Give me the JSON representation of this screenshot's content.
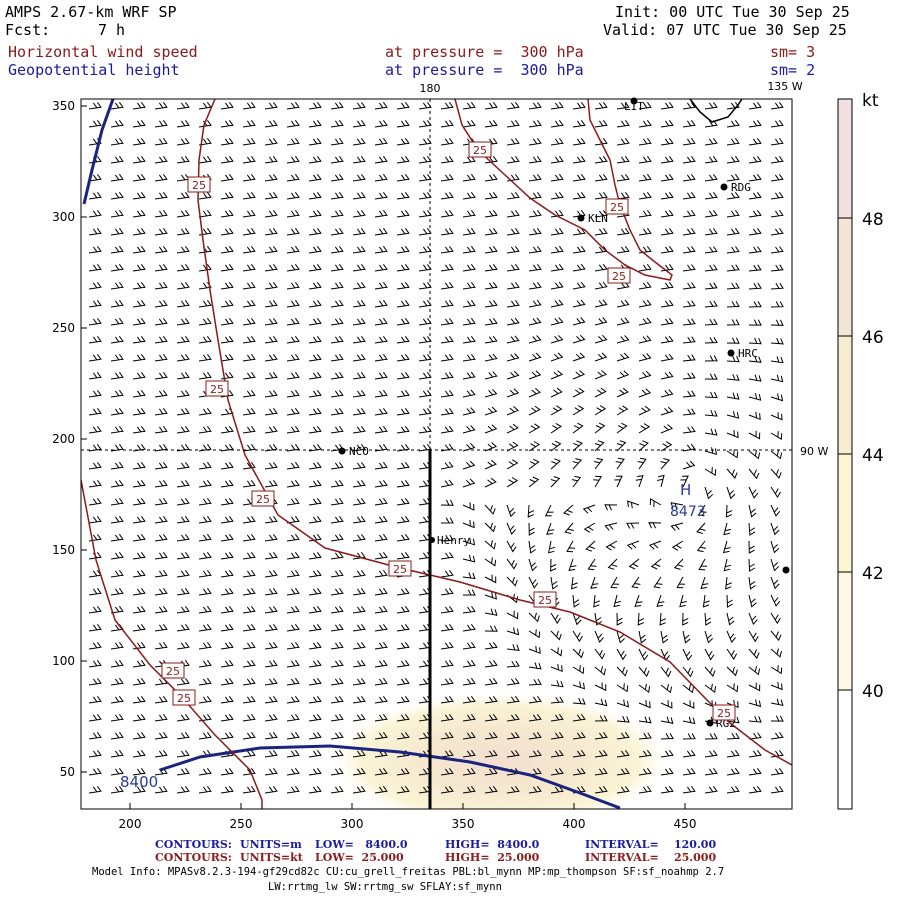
{
  "header": {
    "model": "AMPS 2.67-km WRF SP",
    "fcst_label": "Fcst:",
    "fcst_value": "7 h",
    "init": "Init: 00 UTC Tue 30 Sep 25",
    "valid": "Valid: 07 UTC Tue 30 Sep 25",
    "field1": "Horizontal wind speed",
    "field2": "Geopotential height",
    "level1": "at pressure =  300 hPa",
    "level2": "at pressure =  300 hPa",
    "sm1": "sm= 3",
    "sm2": "sm= 2"
  },
  "map": {
    "meridian_180": "180",
    "meridian_135w": "135 W",
    "meridian_90w": "90 W",
    "x_ticks": [
      "200",
      "250",
      "300",
      "350",
      "400",
      "450"
    ],
    "y_ticks": [
      "350",
      "300",
      "250",
      "200",
      "150",
      "100",
      "50"
    ],
    "stations": [
      {
        "name": "LIT"
      },
      {
        "name": "RDG"
      },
      {
        "name": "KLN"
      },
      {
        "name": "HRC"
      },
      {
        "name": "NCO"
      },
      {
        "name": "Henry"
      },
      {
        "name": "RG2"
      }
    ],
    "contour_labels": [
      "25",
      "25",
      "25",
      "25",
      "25",
      "25",
      "25",
      "25",
      "25",
      "25",
      "25"
    ],
    "height_contour_label": "8400",
    "high_label": "H",
    "high_value": "8473"
  },
  "colorbar": {
    "unit": "kt",
    "labels": [
      "48",
      "46",
      "44",
      "42",
      "40"
    ],
    "colors": [
      "#f3e1e1",
      "#f3e5d7",
      "#f7ecd0",
      "#fbf6d4",
      "#ffffff"
    ]
  },
  "footer": {
    "c1_name": "CONTOURS:",
    "c1_units": "UNITS=m",
    "c1_low": "LOW=   8400.0",
    "c1_high": "HIGH=  8400.0",
    "c1_int": "INTERVAL=    120.00",
    "c2_name": "CONTOURS:",
    "c2_units": "UNITS=kt",
    "c2_low": "LOW=  25.000",
    "c2_high": "HIGH=  25.000",
    "c2_int": "INTERVAL=    25.000",
    "model_info": "Model Info: MPASv8.2.3-194-gf29cd82c CU:cu_grell_freitas PBL:bl_mynn MP:mp_thompson SF:sf_noahmp 2.7",
    "model_info2": "LW:rrtmg_lw SW:rrtmg_sw SFLAY:sf_mynn"
  }
}
